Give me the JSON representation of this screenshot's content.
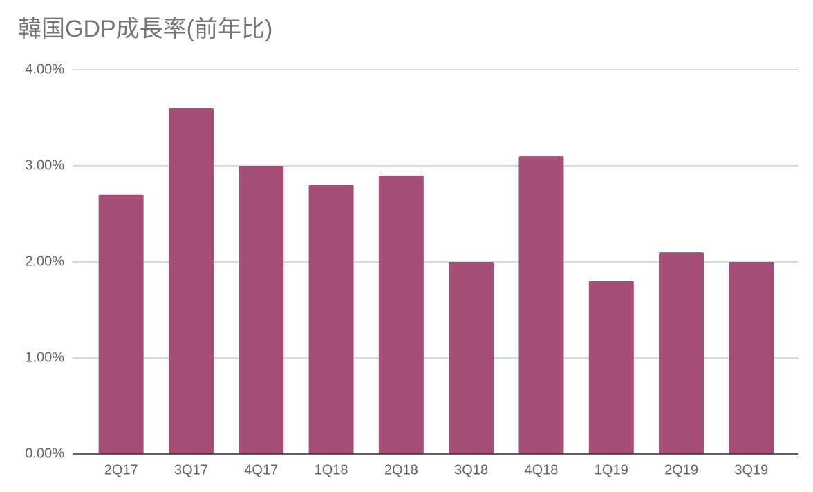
{
  "chart_data": {
    "type": "bar",
    "title": "韓国GDP成長率(前年比)",
    "categories": [
      "2Q17",
      "3Q17",
      "4Q17",
      "1Q18",
      "2Q18",
      "3Q18",
      "4Q18",
      "1Q19",
      "2Q19",
      "3Q19"
    ],
    "values": [
      2.7,
      3.6,
      3.0,
      2.8,
      2.9,
      2.0,
      3.1,
      1.8,
      2.1,
      2.0
    ],
    "color": "#a64d79",
    "ylim": [
      0,
      4
    ],
    "yticks": [
      {
        "value": 0,
        "label": "0.00%"
      },
      {
        "value": 1,
        "label": "1.00%"
      },
      {
        "value": 2,
        "label": "2.00%"
      },
      {
        "value": 3,
        "label": "3.00%"
      },
      {
        "value": 4,
        "label": "4.00%"
      }
    ],
    "grid": true
  }
}
